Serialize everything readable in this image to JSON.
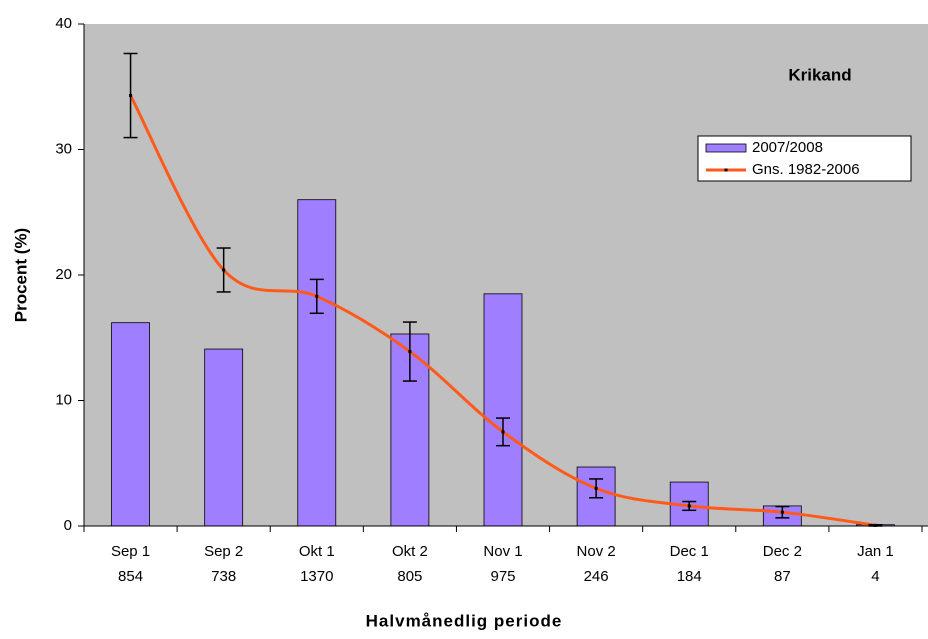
{
  "chart_data": {
    "type": "bar",
    "title": "Krikand",
    "x_label": "Halvmånedlig periode",
    "y_label": "Procent (%)",
    "categories": [
      "Sep 1",
      "Sep 2",
      "Okt 1",
      "Okt 2",
      "Nov 1",
      "Nov 2",
      "Dec 1",
      "Dec 2",
      "Jan 1"
    ],
    "sample_sizes": [
      854,
      738,
      1370,
      805,
      975,
      246,
      184,
      87,
      4
    ],
    "series": [
      {
        "name": "2007/2008",
        "type": "bar",
        "color": "#9f7fff",
        "values": [
          16.2,
          14.1,
          26.0,
          15.3,
          18.5,
          4.7,
          3.5,
          1.6,
          0.1
        ]
      },
      {
        "name": "Gns. 1982-2006",
        "type": "line",
        "color": "#ff5a1a",
        "values": [
          34.3,
          20.4,
          18.3,
          13.9,
          7.5,
          3.0,
          1.6,
          1.1,
          0.05
        ],
        "errors": [
          3.35,
          1.75,
          1.35,
          2.35,
          1.1,
          0.75,
          0.35,
          0.45,
          0.05
        ]
      }
    ],
    "ylim": [
      0,
      40
    ],
    "yticks": [
      0,
      10,
      20,
      30,
      40
    ],
    "legend": "upper right",
    "plot_background": "#c0c0c0"
  }
}
